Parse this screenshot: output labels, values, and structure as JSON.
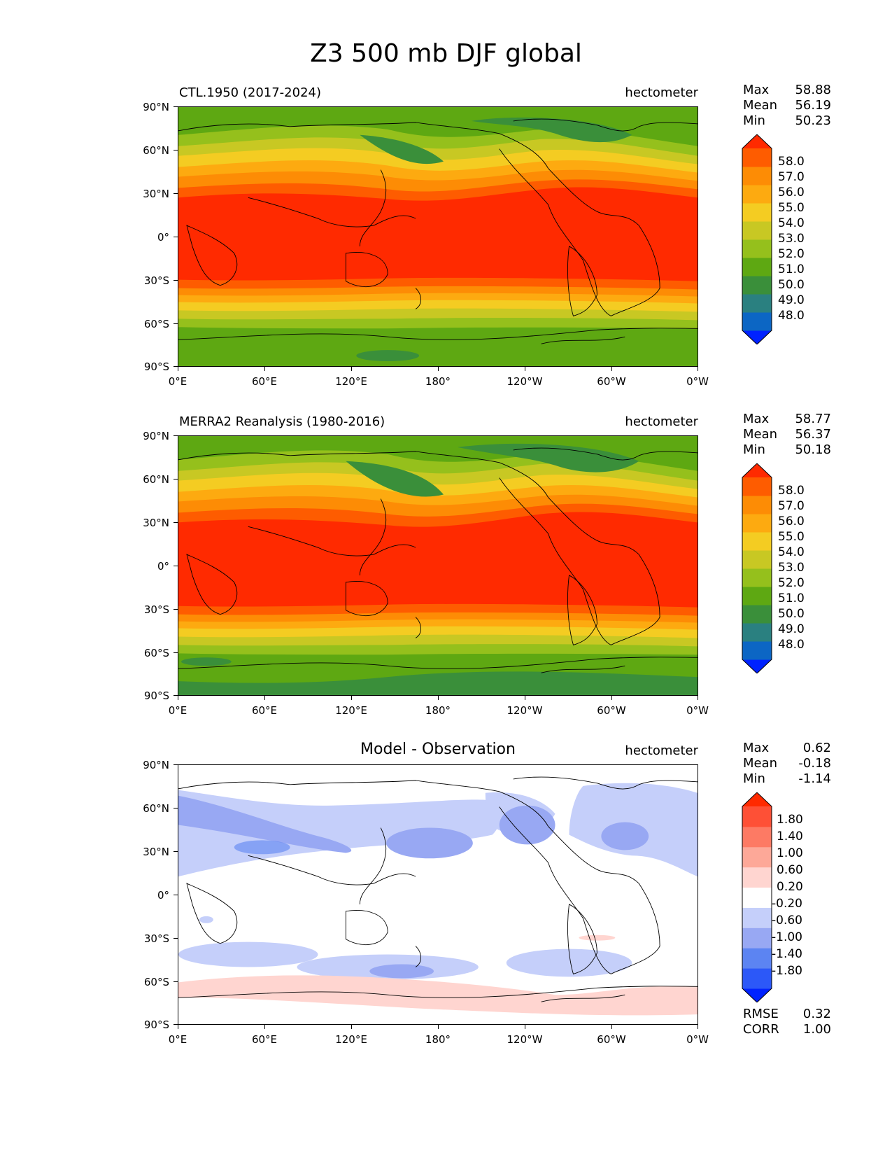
{
  "figure_title": "Z3 500 mb DJF global",
  "x_ticks": [
    "0°E",
    "60°E",
    "120°E",
    "180°",
    "120°W",
    "60°W",
    "0°W"
  ],
  "y_ticks": [
    "90°N",
    "60°N",
    "30°N",
    "0°",
    "30°S",
    "60°S",
    "90°S"
  ],
  "units": "hectometer",
  "colors": {
    "full_scale": [
      "#0022ff",
      "#0c66c4",
      "#2a8080",
      "#3a8f3a",
      "#5ea812",
      "#95c01c",
      "#c8c823",
      "#f4cc22",
      "#fdaa10",
      "#fd8c05",
      "#fe5c00",
      "#ff2a00"
    ],
    "diff_scale": [
      "#0022ff",
      "#2c58f8",
      "#5c84f2",
      "#98a8f3",
      "#c5cffa",
      "#ffffff",
      "#ffd5d0",
      "#fda898",
      "#fd7a64",
      "#fe5036",
      "#ff2a00"
    ]
  },
  "panels": [
    {
      "id": "model",
      "label": "CTL.1950 (2017-2024)",
      "units": "hectometer",
      "stats": [
        {
          "k": "Max",
          "v": "58.88"
        },
        {
          "k": "Mean",
          "v": "56.19"
        },
        {
          "k": "Min",
          "v": "50.23"
        }
      ],
      "colorbar_labels": [
        "58.0",
        "57.0",
        "56.0",
        "55.0",
        "54.0",
        "53.0",
        "52.0",
        "51.0",
        "50.0",
        "49.0",
        "48.0"
      ]
    },
    {
      "id": "obs",
      "label": "MERRA2 Reanalysis (1980-2016)",
      "units": "hectometer",
      "stats": [
        {
          "k": "Max",
          "v": "58.77"
        },
        {
          "k": "Mean",
          "v": "56.37"
        },
        {
          "k": "Min",
          "v": "50.18"
        }
      ],
      "colorbar_labels": [
        "58.0",
        "57.0",
        "56.0",
        "55.0",
        "54.0",
        "53.0",
        "52.0",
        "51.0",
        "50.0",
        "49.0",
        "48.0"
      ]
    },
    {
      "id": "diff",
      "label": "Model - Observation",
      "units": "hectometer",
      "stats": [
        {
          "k": "Max",
          "v": "0.62"
        },
        {
          "k": "Mean",
          "v": "-0.18"
        },
        {
          "k": "Min",
          "v": "-1.14"
        }
      ],
      "colorbar_labels": [
        "1.80",
        "1.40",
        "1.00",
        "0.60",
        "0.20",
        "-0.20",
        "-0.60",
        "-1.00",
        "-1.40",
        "-1.80"
      ],
      "metrics": [
        {
          "k": "RMSE",
          "v": "0.32"
        },
        {
          "k": "CORR",
          "v": "1.00"
        }
      ]
    }
  ]
}
